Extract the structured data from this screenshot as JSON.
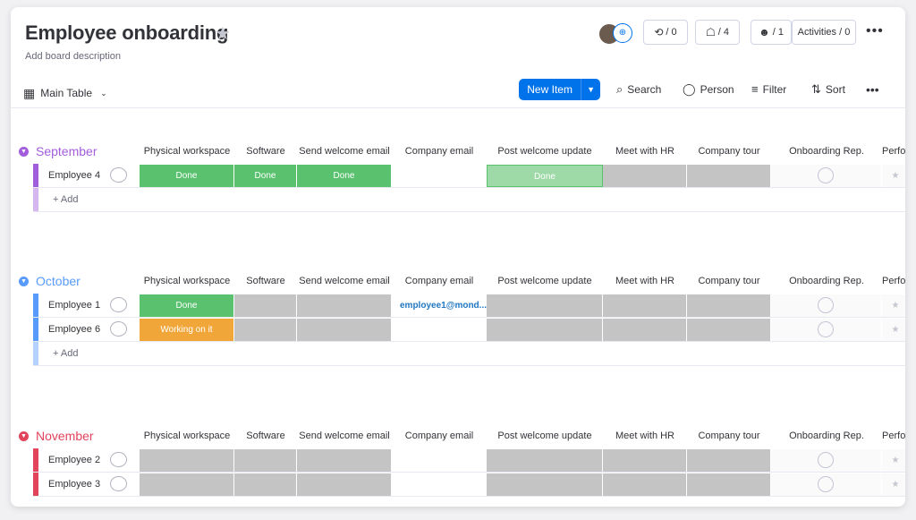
{
  "board": {
    "title": "Employee onboarding",
    "description": "Add board description"
  },
  "header_buttons": {
    "integrations": "/ 0",
    "automations": "/ 4",
    "members": "/ 1",
    "activities": "Activities / 0"
  },
  "toolbar": {
    "view": "Main Table",
    "new_item": "New Item",
    "search": "Search",
    "person": "Person",
    "filter": "Filter",
    "sort": "Sort"
  },
  "columns": [
    "Physical workspace",
    "Software",
    "Send welcome email",
    "Company email",
    "Post welcome update",
    "Meet with HR",
    "Company tour",
    "Onboarding Rep.",
    "Perfor"
  ],
  "add_label": "+ Add",
  "groups": [
    {
      "name": "September",
      "color": "#a25ddc",
      "rows": [
        {
          "name": "Employee 4",
          "cells": [
            "Done",
            "Done",
            "Done",
            "",
            "Done",
            "",
            ""
          ]
        }
      ]
    },
    {
      "name": "October",
      "color": "#579bfc",
      "rows": [
        {
          "name": "Employee 1",
          "cells": [
            "Done",
            "",
            "",
            "employee1@mond...",
            "",
            "",
            ""
          ]
        },
        {
          "name": "Employee 6",
          "cells": [
            "Working on it",
            "",
            "",
            "",
            "",
            "",
            ""
          ]
        }
      ]
    },
    {
      "name": "November",
      "color": "#e2445c",
      "rows": [
        {
          "name": "Employee 2",
          "cells": [
            "",
            "",
            "",
            "",
            "",
            "",
            ""
          ]
        },
        {
          "name": "Employee 3",
          "cells": [
            "",
            "",
            "",
            "",
            "",
            "",
            ""
          ]
        }
      ]
    }
  ],
  "colors": {
    "done": "#5ac26f",
    "working": "#f1a63a",
    "empty": "#c4c4c4",
    "accent": "#0073ea"
  }
}
